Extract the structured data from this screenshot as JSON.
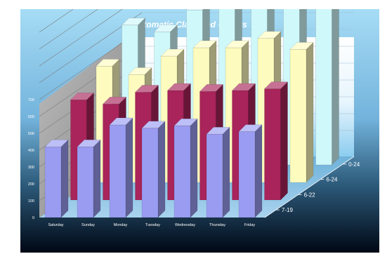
{
  "chart_data": {
    "type": "bar",
    "title": "Automatic Classified Counts",
    "categories": [
      "Saturday",
      "Sunday",
      "Monday",
      "Tuesday",
      "Wednesday",
      "Thursday",
      "Friday"
    ],
    "depth_categories": [
      "7-19",
      "6-22",
      "6-24",
      "0-24"
    ],
    "series": [
      {
        "name": "7-19",
        "values": [
          420,
          420,
          550,
          530,
          545,
          495,
          510
        ]
      },
      {
        "name": "6-22",
        "values": [
          595,
          570,
          640,
          650,
          645,
          650,
          660
        ]
      },
      {
        "name": "6-24",
        "values": [
          690,
          640,
          750,
          800,
          800,
          855,
          790
        ]
      },
      {
        "name": "0-24",
        "values": [
          830,
          790,
          920,
          930,
          1040,
          1060,
          1050
        ]
      }
    ],
    "y_ticks": [
      "0",
      "100",
      "200",
      "300",
      "400",
      "500",
      "600",
      "700"
    ],
    "ylim": [
      0,
      1100
    ],
    "grid": true,
    "colors": {
      "7-19": "#9a9cf2",
      "6-22": "#a8245a",
      "6-24": "#fdfcbe",
      "0-24": "#cff8fa",
      "background_top": "#9fd7f3",
      "background_bottom": "#000714",
      "wall": "#ffffff",
      "side_wall": "#a9a9a9",
      "floor": "#a4d2ee"
    }
  }
}
